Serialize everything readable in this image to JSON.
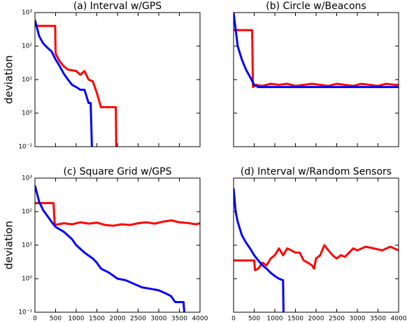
{
  "chart_data": [
    {
      "type": "line",
      "title": "(a) Interval w/GPS",
      "ylabel": "deviation",
      "log_y": true,
      "xlim": [
        0,
        4000
      ],
      "xticks": [
        0,
        500,
        1000,
        1500,
        2000,
        2500,
        3000,
        3500,
        4000
      ],
      "ylim": [
        0.1,
        1000
      ],
      "yticks": [
        {
          "value": 0.1,
          "label": "10⁻¹"
        },
        {
          "value": 1,
          "label": "10⁰"
        },
        {
          "value": 10,
          "label": "10¹"
        },
        {
          "value": 100,
          "label": "10²"
        },
        {
          "value": 1000,
          "label": "10³"
        }
      ],
      "series": [
        {
          "color": "#ff0000",
          "x": [
            0,
            490,
            500,
            600,
            700,
            800,
            1000,
            1100,
            1200,
            1300,
            1400,
            1500,
            1600,
            1960,
            1970
          ],
          "values": [
            400,
            400,
            60,
            35,
            25,
            20,
            18,
            14,
            18,
            10,
            9,
            4,
            1.5,
            1.5,
            0.1
          ]
        },
        {
          "color": "#0000ff",
          "x": [
            0,
            100,
            200,
            300,
            400,
            500,
            600,
            700,
            800,
            900,
            1000,
            1100,
            1200,
            1300,
            1350,
            1380
          ],
          "values": [
            600,
            200,
            120,
            90,
            70,
            40,
            25,
            15,
            10,
            7,
            6,
            5,
            5,
            2,
            2,
            0.1
          ]
        }
      ]
    },
    {
      "type": "line",
      "title": "(b) Circle w/Beacons",
      "log_y": true,
      "xlim": [
        0,
        4000
      ],
      "xticks": [
        0,
        500,
        1000,
        1500,
        2000,
        2500,
        3000,
        3500,
        4000
      ],
      "ylim": [
        0.1,
        1000
      ],
      "yticks": [
        0.1,
        1,
        10,
        100,
        1000
      ],
      "series": [
        {
          "color": "#ff0000",
          "x": [
            0,
            450,
            470,
            550,
            700,
            900,
            1100,
            1300,
            1500,
            1700,
            1900,
            2100,
            2300,
            2500,
            2700,
            2900,
            3100,
            3300,
            3500,
            3700,
            3900,
            4000
          ],
          "values": [
            300,
            300,
            6,
            7,
            6.5,
            7.5,
            7,
            7.5,
            6.5,
            7,
            7.5,
            7,
            6.5,
            7.5,
            7,
            6.5,
            7.5,
            7,
            6.5,
            7.5,
            7,
            7
          ]
        },
        {
          "color": "#0000ff",
          "x": [
            0,
            100,
            200,
            300,
            400,
            500,
            600,
            4000
          ],
          "values": [
            1000,
            100,
            40,
            20,
            12,
            7,
            6,
            6
          ]
        }
      ]
    },
    {
      "type": "line",
      "title": "(c) Square Grid w/GPS",
      "ylabel": "deviation",
      "xlabel": "time",
      "log_y": true,
      "xlim": [
        0,
        4000
      ],
      "xticks": [
        0,
        500,
        1000,
        1500,
        2000,
        2500,
        3000,
        3500,
        4000
      ],
      "ylim": [
        0.1,
        1000
      ],
      "yticks": [
        {
          "value": 0.1,
          "label": "10⁻¹"
        },
        {
          "value": 1,
          "label": "10⁰"
        },
        {
          "value": 10,
          "label": "10¹"
        },
        {
          "value": 100,
          "label": "10²"
        },
        {
          "value": 1000,
          "label": "10³"
        }
      ],
      "series": [
        {
          "color": "#ff0000",
          "x": [
            0,
            450,
            480,
            700,
            900,
            1100,
            1300,
            1500,
            1700,
            1900,
            2100,
            2300,
            2500,
            2700,
            2900,
            3100,
            3300,
            3500,
            3700,
            3900,
            4000
          ],
          "values": [
            180,
            180,
            40,
            45,
            42,
            48,
            44,
            47,
            40,
            38,
            42,
            40,
            45,
            48,
            44,
            50,
            55,
            48,
            46,
            42,
            45
          ]
        },
        {
          "color": "#0000ff",
          "x": [
            0,
            100,
            200,
            300,
            400,
            500,
            700,
            900,
            1000,
            1200,
            1400,
            1500,
            1600,
            1800,
            2000,
            2200,
            2400,
            2600,
            2800,
            3000,
            3200,
            3300,
            3400,
            3600,
            3620
          ],
          "values": [
            600,
            200,
            110,
            75,
            50,
            35,
            25,
            15,
            10,
            6,
            4,
            3,
            2,
            1.5,
            1,
            0.9,
            0.7,
            0.55,
            0.5,
            0.45,
            0.35,
            0.3,
            0.2,
            0.2,
            0.1
          ]
        }
      ]
    },
    {
      "type": "line",
      "title": "(d) Interval w/Random Sensors",
      "xlabel": "time",
      "log_y": true,
      "xlim": [
        0,
        4000
      ],
      "xticks": [
        0,
        500,
        1000,
        1500,
        2000,
        2500,
        3000,
        3500,
        4000
      ],
      "ylim": [
        0.1,
        1000
      ],
      "yticks": [
        0.1,
        1,
        10,
        100,
        1000
      ],
      "series": [
        {
          "color": "#ff0000",
          "x": [
            0,
            500,
            520,
            600,
            700,
            800,
            900,
            1000,
            1100,
            1200,
            1300,
            1400,
            1500,
            1600,
            1700,
            1800,
            1900,
            1950,
            2000,
            2100,
            2200,
            2300,
            2400,
            2500,
            2600,
            2700,
            2800,
            2900,
            3000,
            3200,
            3400,
            3600,
            3800,
            4000
          ],
          "values": [
            3.5,
            3.5,
            1.8,
            2,
            3,
            2.5,
            4,
            5,
            8,
            5,
            8,
            7,
            6,
            6,
            3.5,
            3,
            2.5,
            2,
            4,
            5,
            10,
            7,
            5,
            4,
            5,
            4.5,
            6,
            8,
            7,
            9,
            8,
            7,
            9,
            7
          ]
        },
        {
          "color": "#0000ff",
          "x": [
            0,
            50,
            100,
            200,
            300,
            400,
            500,
            600,
            700,
            800,
            900,
            1000,
            1100,
            1200,
            1210
          ],
          "values": [
            500,
            100,
            50,
            20,
            12,
            8,
            5,
            3.5,
            2.5,
            2,
            1.5,
            1.2,
            1,
            0.9,
            0.1
          ]
        }
      ]
    }
  ]
}
